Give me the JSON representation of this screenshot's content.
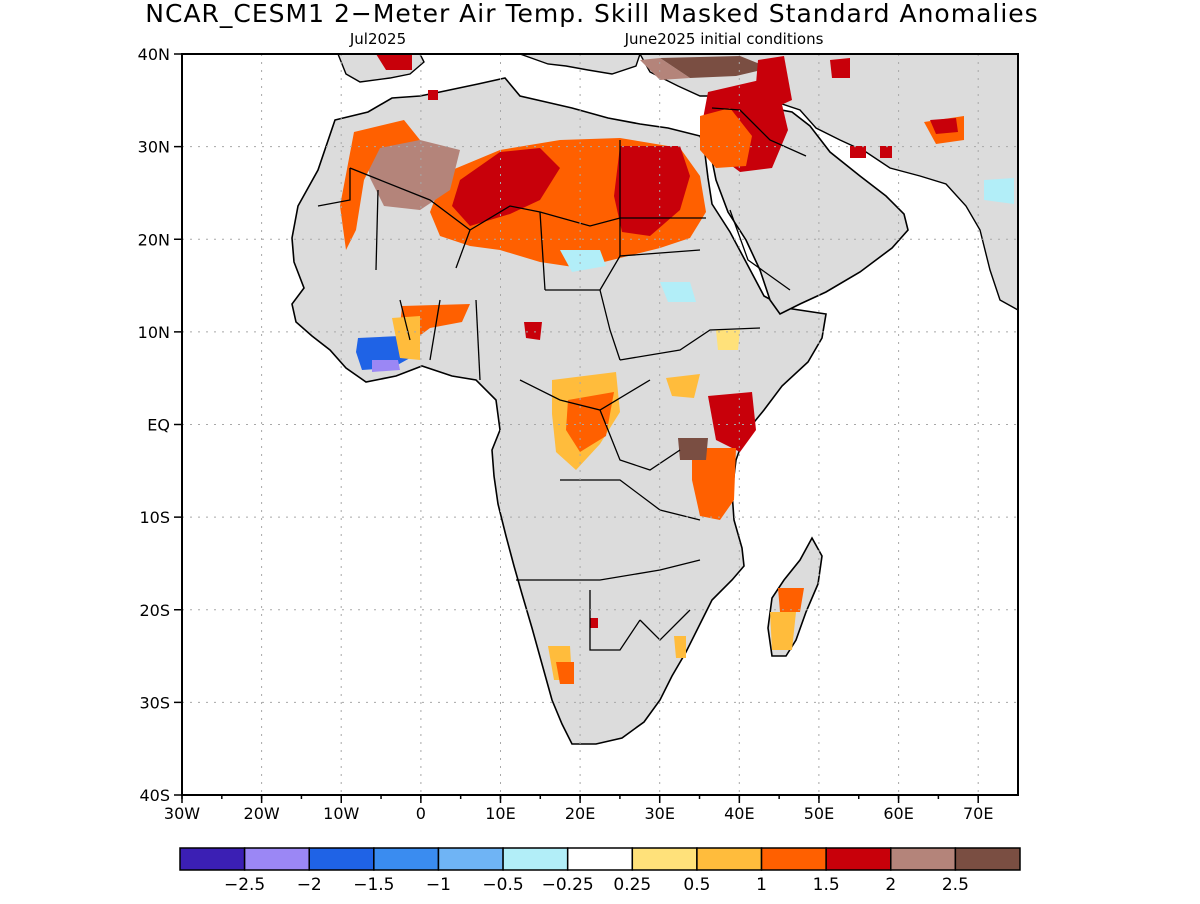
{
  "title": "NCAR_CESM1 2−Meter Air Temp. Skill Masked Standard Anomalies",
  "subtitle_left": "Jul2025",
  "subtitle_right": "June2025 initial conditions",
  "lat_labels": [
    "40N",
    "30N",
    "20N",
    "10N",
    "EQ",
    "10S",
    "20S",
    "30S",
    "40S"
  ],
  "lon_labels": [
    "30W",
    "20W",
    "10W",
    "0",
    "10E",
    "20E",
    "30E",
    "40E",
    "50E",
    "60E",
    "70E"
  ],
  "colorbar": {
    "colors": [
      "#3b1fb4",
      "#9b87f5",
      "#1f63e6",
      "#3a8cf0",
      "#6fb4f5",
      "#b2eef8",
      "#ffffff",
      "#ffe17a",
      "#ffbc3c",
      "#ff6000",
      "#c8000a",
      "#b4847a",
      "#7a4e42"
    ],
    "labels": [
      "−2.5",
      "−2",
      "−1.5",
      "−1",
      "−0.5",
      "−0.25",
      "0.25",
      "0.5",
      "1",
      "1.5",
      "2",
      "2.5"
    ]
  },
  "colors": {
    "land_mask": "#dcdcdc",
    "coast": "#000000",
    "grid": "#b0b0b0"
  },
  "anomaly_regions": [
    {
      "name": "sahara-central",
      "level": "1.5"
    },
    {
      "name": "sahara-core",
      "level": "2"
    },
    {
      "name": "western-sahara",
      "level": "2.5"
    },
    {
      "name": "egypt-levant",
      "level": "2"
    },
    {
      "name": "turkey-east",
      "level": "2.5"
    },
    {
      "name": "gulf-of-guinea",
      "level": "-1.5"
    },
    {
      "name": "central-africa",
      "level": "1"
    },
    {
      "name": "east-africa",
      "level": "1.5"
    },
    {
      "name": "madagascar",
      "level": "1"
    },
    {
      "name": "southern-africa",
      "level": "1"
    }
  ]
}
